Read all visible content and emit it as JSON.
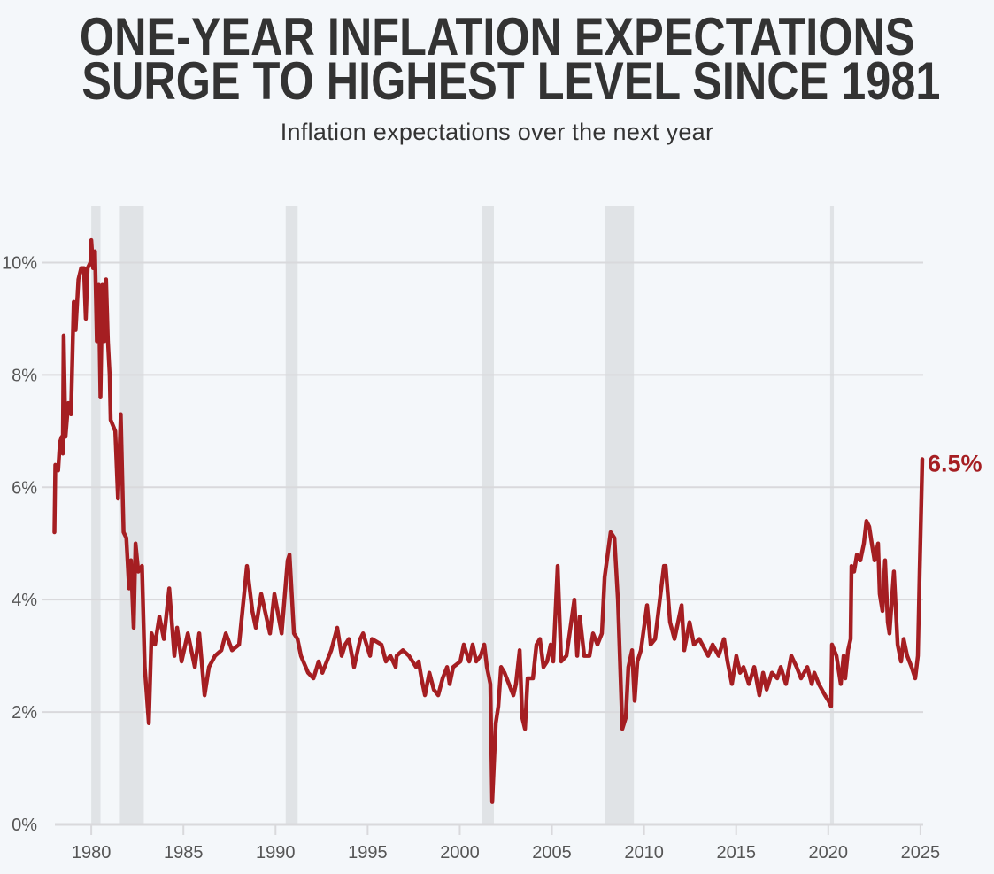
{
  "title_line1": "ONE-YEAR INFLATION EXPECTATIONS",
  "title_line2": "SURGE TO HIGHEST LEVEL SINCE 1981",
  "subtitle": "Inflation expectations over the next year",
  "chart_data": {
    "type": "line",
    "title": "ONE-YEAR INFLATION EXPECTATIONS SURGE TO HIGHEST LEVEL SINCE 1981",
    "subtitle": "Inflation expectations over the next year",
    "xlabel": "",
    "ylabel": "",
    "xlim": [
      1977.4,
      2025.15
    ],
    "ylim": [
      0,
      11
    ],
    "grid": "horizontal",
    "legend": "none",
    "x_ticks": [
      1980,
      1985,
      1990,
      1995,
      2000,
      2005,
      2010,
      2015,
      2020,
      2025
    ],
    "x_tick_labels": [
      "1980",
      "1985",
      "1990",
      "1995",
      "2000",
      "2005",
      "2010",
      "2015",
      "2020",
      "2025"
    ],
    "y_ticks": [
      0,
      2,
      4,
      6,
      8,
      10
    ],
    "y_tick_labels": [
      "0%",
      "2%",
      "4%",
      "6%",
      "8%",
      "10%"
    ],
    "shaded_periods": [
      [
        1980.0,
        1980.5
      ],
      [
        1981.55,
        1982.85
      ],
      [
        1990.55,
        1991.2
      ],
      [
        2001.2,
        2001.85
      ],
      [
        2007.9,
        2009.45
      ],
      [
        2020.1,
        2020.3
      ]
    ],
    "end_label": "6.5%",
    "colors": {
      "line": "#a51e22",
      "shading": "#e0e3e6",
      "grid": "#d9d9dc",
      "background": "#f4f7fa",
      "text": "#333333"
    },
    "series": [
      {
        "points": [
          [
            1978.0,
            5.2
          ],
          [
            1978.05,
            6.4
          ],
          [
            1978.2,
            6.3
          ],
          [
            1978.3,
            6.8
          ],
          [
            1978.4,
            6.9
          ],
          [
            1978.45,
            6.6
          ],
          [
            1978.5,
            8.7
          ],
          [
            1978.6,
            6.9
          ],
          [
            1978.75,
            7.5
          ],
          [
            1978.9,
            7.3
          ],
          [
            1979.05,
            9.3
          ],
          [
            1979.15,
            8.8
          ],
          [
            1979.3,
            9.7
          ],
          [
            1979.45,
            9.9
          ],
          [
            1979.6,
            9.9
          ],
          [
            1979.7,
            9.0
          ],
          [
            1979.8,
            9.9
          ],
          [
            1979.95,
            10.0
          ],
          [
            1980.0,
            10.4
          ],
          [
            1980.1,
            9.9
          ],
          [
            1980.2,
            10.2
          ],
          [
            1980.3,
            8.6
          ],
          [
            1980.4,
            9.6
          ],
          [
            1980.5,
            7.6
          ],
          [
            1980.6,
            9.6
          ],
          [
            1980.7,
            8.6
          ],
          [
            1980.8,
            9.7
          ],
          [
            1980.9,
            8.6
          ],
          [
            1981.0,
            8.0
          ],
          [
            1981.05,
            7.2
          ],
          [
            1981.3,
            7.0
          ],
          [
            1981.45,
            5.8
          ],
          [
            1981.6,
            7.3
          ],
          [
            1981.75,
            5.2
          ],
          [
            1981.9,
            5.1
          ],
          [
            1982.05,
            4.2
          ],
          [
            1982.15,
            4.7
          ],
          [
            1982.3,
            3.5
          ],
          [
            1982.4,
            5.0
          ],
          [
            1982.55,
            4.5
          ],
          [
            1982.75,
            4.6
          ],
          [
            1982.9,
            2.8
          ],
          [
            1983.12,
            1.8
          ],
          [
            1983.27,
            3.4
          ],
          [
            1983.46,
            3.2
          ],
          [
            1983.7,
            3.7
          ],
          [
            1983.94,
            3.3
          ],
          [
            1984.23,
            4.2
          ],
          [
            1984.51,
            3.0
          ],
          [
            1984.66,
            3.5
          ],
          [
            1984.9,
            2.9
          ],
          [
            1985.24,
            3.4
          ],
          [
            1985.62,
            2.8
          ],
          [
            1985.86,
            3.4
          ],
          [
            1986.15,
            2.3
          ],
          [
            1986.39,
            2.8
          ],
          [
            1986.72,
            3.0
          ],
          [
            1987.06,
            3.1
          ],
          [
            1987.3,
            3.4
          ],
          [
            1987.64,
            3.1
          ],
          [
            1988.02,
            3.2
          ],
          [
            1988.45,
            4.6
          ],
          [
            1988.74,
            3.8
          ],
          [
            1988.93,
            3.5
          ],
          [
            1989.22,
            4.1
          ],
          [
            1989.7,
            3.4
          ],
          [
            1989.94,
            4.1
          ],
          [
            1990.33,
            3.4
          ],
          [
            1990.66,
            4.7
          ],
          [
            1990.76,
            4.8
          ],
          [
            1991.0,
            3.4
          ],
          [
            1991.19,
            3.3
          ],
          [
            1991.38,
            3.0
          ],
          [
            1991.77,
            2.7
          ],
          [
            1992.06,
            2.6
          ],
          [
            1992.34,
            2.9
          ],
          [
            1992.54,
            2.7
          ],
          [
            1993.02,
            3.1
          ],
          [
            1993.35,
            3.5
          ],
          [
            1993.59,
            3.0
          ],
          [
            1993.78,
            3.2
          ],
          [
            1993.98,
            3.3
          ],
          [
            1994.26,
            2.8
          ],
          [
            1994.6,
            3.3
          ],
          [
            1994.75,
            3.4
          ],
          [
            1995.13,
            3.0
          ],
          [
            1995.23,
            3.3
          ],
          [
            1995.75,
            3.2
          ],
          [
            1995.99,
            2.9
          ],
          [
            1996.23,
            3.0
          ],
          [
            1996.52,
            2.8
          ],
          [
            1996.57,
            3.0
          ],
          [
            1996.91,
            3.1
          ],
          [
            1997.24,
            3.0
          ],
          [
            1997.63,
            2.8
          ],
          [
            1997.77,
            2.9
          ],
          [
            1997.92,
            2.6
          ],
          [
            1998.11,
            2.3
          ],
          [
            1998.35,
            2.7
          ],
          [
            1998.59,
            2.4
          ],
          [
            1998.83,
            2.3
          ],
          [
            1999.07,
            2.6
          ],
          [
            1999.31,
            2.8
          ],
          [
            1999.45,
            2.5
          ],
          [
            1999.64,
            2.8
          ],
          [
            2000.03,
            2.9
          ],
          [
            2000.22,
            3.2
          ],
          [
            2000.51,
            2.9
          ],
          [
            2000.7,
            3.2
          ],
          [
            2000.89,
            2.9
          ],
          [
            2001.13,
            3.0
          ],
          [
            2001.33,
            3.2
          ],
          [
            2001.47,
            2.8
          ],
          [
            2001.66,
            2.5
          ],
          [
            2001.76,
            0.4
          ],
          [
            2001.95,
            1.8
          ],
          [
            2002.09,
            2.1
          ],
          [
            2002.24,
            2.8
          ],
          [
            2002.43,
            2.7
          ],
          [
            2002.67,
            2.5
          ],
          [
            2002.91,
            2.3
          ],
          [
            2003.05,
            2.5
          ],
          [
            2003.25,
            3.1
          ],
          [
            2003.39,
            1.9
          ],
          [
            2003.54,
            1.7
          ],
          [
            2003.68,
            2.6
          ],
          [
            2003.97,
            2.6
          ],
          [
            2004.16,
            3.2
          ],
          [
            2004.35,
            3.3
          ],
          [
            2004.54,
            2.8
          ],
          [
            2004.74,
            2.9
          ],
          [
            2004.93,
            3.2
          ],
          [
            2005.07,
            2.9
          ],
          [
            2005.31,
            4.6
          ],
          [
            2005.5,
            2.9
          ],
          [
            2005.79,
            3.0
          ],
          [
            2006.22,
            4.0
          ],
          [
            2006.37,
            3.0
          ],
          [
            2006.51,
            3.7
          ],
          [
            2006.75,
            3.0
          ],
          [
            2007.04,
            3.0
          ],
          [
            2007.23,
            3.4
          ],
          [
            2007.47,
            3.2
          ],
          [
            2007.71,
            3.4
          ],
          [
            2007.86,
            4.4
          ],
          [
            2008.19,
            5.2
          ],
          [
            2008.39,
            5.1
          ],
          [
            2008.58,
            4.0
          ],
          [
            2008.82,
            1.7
          ],
          [
            2009.01,
            1.9
          ],
          [
            2009.15,
            2.8
          ],
          [
            2009.35,
            3.1
          ],
          [
            2009.49,
            2.2
          ],
          [
            2009.64,
            2.9
          ],
          [
            2009.83,
            3.1
          ],
          [
            2010.16,
            3.9
          ],
          [
            2010.36,
            3.2
          ],
          [
            2010.6,
            3.3
          ],
          [
            2011.08,
            4.6
          ],
          [
            2011.17,
            4.6
          ],
          [
            2011.41,
            3.6
          ],
          [
            2011.65,
            3.3
          ],
          [
            2012.04,
            3.9
          ],
          [
            2012.18,
            3.1
          ],
          [
            2012.47,
            3.6
          ],
          [
            2012.71,
            3.2
          ],
          [
            2013.0,
            3.3
          ],
          [
            2013.48,
            3.0
          ],
          [
            2013.72,
            3.2
          ],
          [
            2014.05,
            3.0
          ],
          [
            2014.34,
            3.3
          ],
          [
            2014.53,
            2.9
          ],
          [
            2014.77,
            2.5
          ],
          [
            2015.01,
            3.0
          ],
          [
            2015.21,
            2.7
          ],
          [
            2015.4,
            2.8
          ],
          [
            2015.69,
            2.5
          ],
          [
            2015.98,
            2.8
          ],
          [
            2016.26,
            2.3
          ],
          [
            2016.46,
            2.7
          ],
          [
            2016.65,
            2.4
          ],
          [
            2016.94,
            2.7
          ],
          [
            2017.23,
            2.6
          ],
          [
            2017.42,
            2.8
          ],
          [
            2017.7,
            2.5
          ],
          [
            2017.99,
            3.0
          ],
          [
            2018.28,
            2.8
          ],
          [
            2018.52,
            2.6
          ],
          [
            2018.86,
            2.8
          ],
          [
            2019.1,
            2.5
          ],
          [
            2019.24,
            2.7
          ],
          [
            2019.48,
            2.5
          ],
          [
            2019.82,
            2.3
          ],
          [
            2020.01,
            2.2
          ],
          [
            2020.15,
            2.1
          ],
          [
            2020.2,
            3.2
          ],
          [
            2020.44,
            3.0
          ],
          [
            2020.68,
            2.5
          ],
          [
            2020.83,
            3.0
          ],
          [
            2020.92,
            2.6
          ],
          [
            2021.07,
            3.1
          ],
          [
            2021.21,
            3.3
          ],
          [
            2021.26,
            4.6
          ],
          [
            2021.4,
            4.5
          ],
          [
            2021.55,
            4.8
          ],
          [
            2021.74,
            4.7
          ],
          [
            2021.93,
            5.0
          ],
          [
            2022.07,
            5.4
          ],
          [
            2022.22,
            5.3
          ],
          [
            2022.36,
            5.0
          ],
          [
            2022.51,
            4.7
          ],
          [
            2022.7,
            5.0
          ],
          [
            2022.79,
            4.1
          ],
          [
            2022.94,
            3.8
          ],
          [
            2023.08,
            4.7
          ],
          [
            2023.23,
            3.6
          ],
          [
            2023.32,
            3.4
          ],
          [
            2023.56,
            4.5
          ],
          [
            2023.76,
            3.2
          ],
          [
            2023.95,
            2.9
          ],
          [
            2024.09,
            3.3
          ],
          [
            2024.28,
            3.0
          ],
          [
            2024.52,
            2.8
          ],
          [
            2024.72,
            2.6
          ],
          [
            2024.86,
            3.0
          ],
          [
            2024.96,
            4.5
          ],
          [
            2025.1,
            6.5
          ]
        ]
      }
    ]
  }
}
